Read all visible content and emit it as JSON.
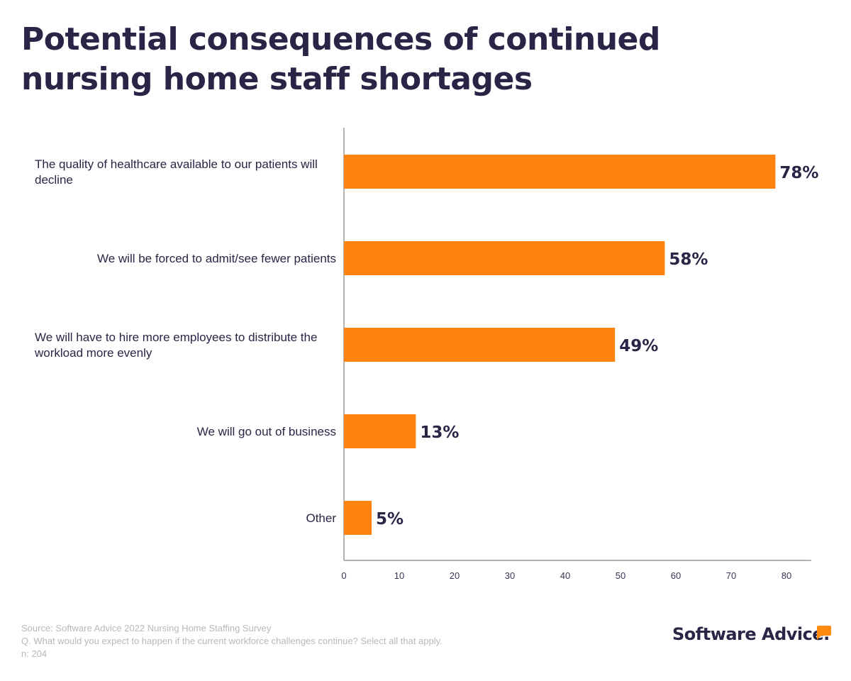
{
  "title": "Potential consequences of continued nursing home staff shortages",
  "chart_data": {
    "type": "bar",
    "orientation": "horizontal",
    "categories": [
      "The quality of healthcare available to our patients will decline",
      "We will be forced to admit/see fewer patients",
      "We will have to hire more employees to distribute the workload more evenly",
      "We will go out of business",
      "Other"
    ],
    "category_lines": [
      [
        "The quality of healthcare available to our patients will",
        "decline"
      ],
      [
        "We will be forced to admit/see fewer patients"
      ],
      [
        "We will have to hire more employees to distribute the",
        "workload more evenly"
      ],
      [
        "We will go out of business"
      ],
      [
        "Other"
      ]
    ],
    "values": [
      78,
      58,
      49,
      13,
      5
    ],
    "data_labels": [
      "78%",
      "58%",
      "49%",
      "13%",
      "5%"
    ],
    "xlim": [
      0,
      86
    ],
    "xticks": [
      0,
      10,
      20,
      30,
      40,
      50,
      60,
      70,
      80
    ],
    "grid": false,
    "bar_color": "#ff840f",
    "text_color": "#2b2446"
  },
  "footer": {
    "source": "Source: Software Advice 2022 Nursing Home Staffing Survey",
    "question": "Q. What would you expect to happen if the current workforce challenges continue? Select all that apply.",
    "n": "n: 204"
  },
  "logo": "Software Advice."
}
